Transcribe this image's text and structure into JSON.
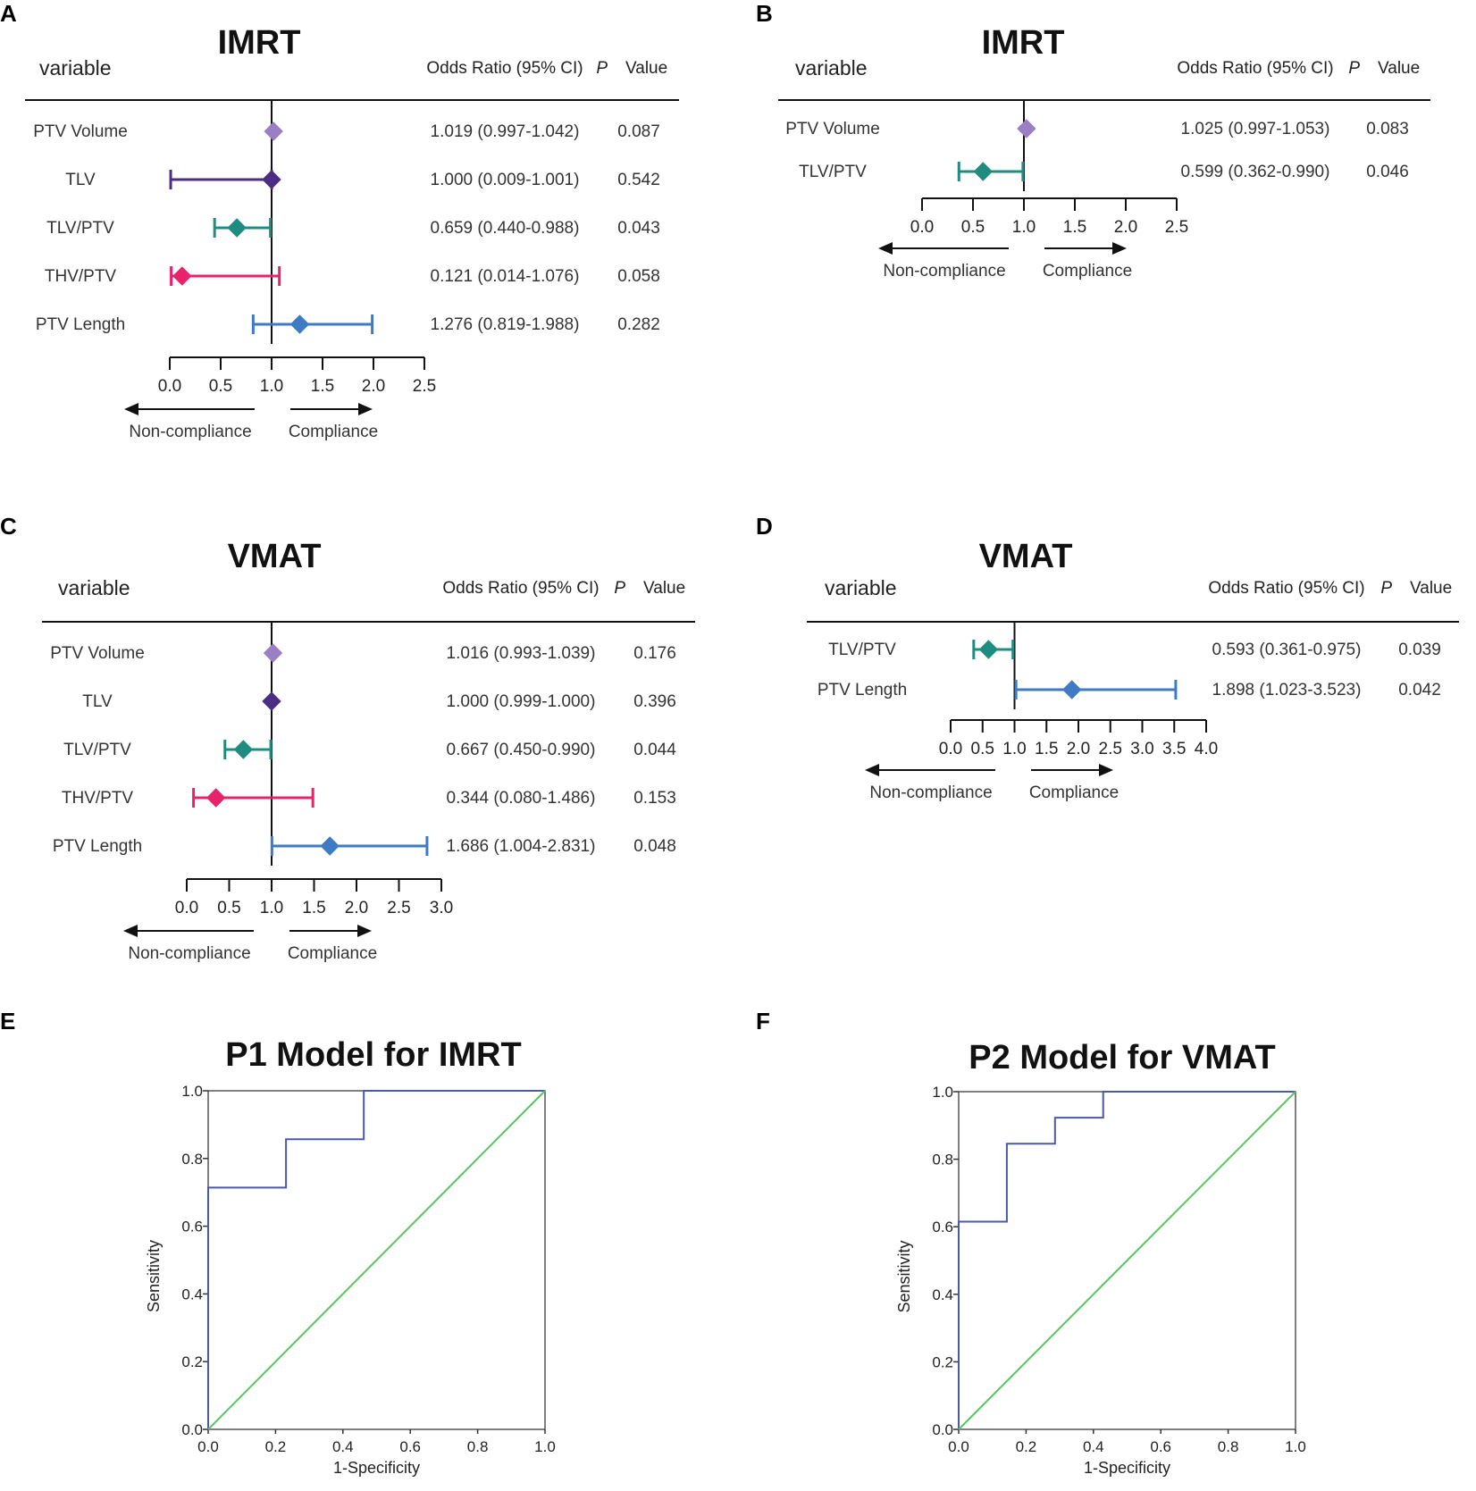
{
  "figure": {
    "forest_headers": {
      "variable": "variable",
      "or": "Odds Ratio (95% CI)",
      "p_italic": "P",
      "p_rest": "Value",
      "non_compliance": "Non-compliance",
      "compliance": "Compliance"
    },
    "colors": {
      "PTV Volume": "#9b7fc4",
      "TLV": "#4b2d84",
      "TLV/PTV": "#1f8c82",
      "THV/PTV": "#e8226b",
      "PTV Length": "#3f7bc4",
      "roc_curve": "#4a5aa8",
      "roc_diag": "#59c461"
    }
  },
  "chart_data": [
    {
      "id": "A",
      "type": "forest",
      "letter": "A",
      "title": "IMRT",
      "ticks": [
        "0.0",
        "0.5",
        "1.0",
        "1.5",
        "2.0",
        "2.5"
      ],
      "xlim": [
        0,
        2.5
      ],
      "rows": [
        {
          "label": "PTV Volume",
          "or": 1.019,
          "lo": 0.997,
          "hi": 1.042,
          "or_text": "1.019 (0.997-1.042)",
          "p": "0.087"
        },
        {
          "label": "TLV",
          "or": 1.0,
          "lo": 0.009,
          "hi": 1.001,
          "or_text": "1.000 (0.009-1.001)",
          "p": "0.542"
        },
        {
          "label": "TLV/PTV",
          "or": 0.659,
          "lo": 0.44,
          "hi": 0.988,
          "or_text": "0.659 (0.440-0.988)",
          "p": "0.043"
        },
        {
          "label": "THV/PTV",
          "or": 0.121,
          "lo": 0.014,
          "hi": 1.076,
          "or_text": "0.121 (0.014-1.076)",
          "p": "0.058"
        },
        {
          "label": "PTV Length",
          "or": 1.276,
          "lo": 0.819,
          "hi": 1.988,
          "or_text": "1.276 (0.819-1.988)",
          "p": "0.282"
        }
      ]
    },
    {
      "id": "B",
      "type": "forest",
      "letter": "B",
      "title": "IMRT",
      "ticks": [
        "0.0",
        "0.5",
        "1.0",
        "1.5",
        "2.0",
        "2.5"
      ],
      "xlim": [
        0,
        2.5
      ],
      "rows": [
        {
          "label": "PTV Volume",
          "or": 1.025,
          "lo": 0.997,
          "hi": 1.053,
          "or_text": "1.025 (0.997-1.053)",
          "p": "0.083"
        },
        {
          "label": "TLV/PTV",
          "or": 0.599,
          "lo": 0.362,
          "hi": 0.99,
          "or_text": "0.599 (0.362-0.990)",
          "p": "0.046"
        }
      ]
    },
    {
      "id": "C",
      "type": "forest",
      "letter": "C",
      "title": "VMAT",
      "ticks": [
        "0.0",
        "0.5",
        "1.0",
        "1.5",
        "2.0",
        "2.5",
        "3.0"
      ],
      "xlim": [
        0,
        3.0
      ],
      "rows": [
        {
          "label": "PTV Volume",
          "or": 1.016,
          "lo": 0.993,
          "hi": 1.039,
          "or_text": "1.016 (0.993-1.039)",
          "p": "0.176"
        },
        {
          "label": "TLV",
          "or": 1.0,
          "lo": 0.999,
          "hi": 1.0,
          "or_text": "1.000 (0.999-1.000)",
          "p": "0.396"
        },
        {
          "label": "TLV/PTV",
          "or": 0.667,
          "lo": 0.45,
          "hi": 0.99,
          "or_text": "0.667 (0.450-0.990)",
          "p": "0.044"
        },
        {
          "label": "THV/PTV",
          "or": 0.344,
          "lo": 0.08,
          "hi": 1.486,
          "or_text": "0.344 (0.080-1.486)",
          "p": "0.153"
        },
        {
          "label": "PTV Length",
          "or": 1.686,
          "lo": 1.004,
          "hi": 2.831,
          "or_text": "1.686 (1.004-2.831)",
          "p": "0.048"
        }
      ]
    },
    {
      "id": "D",
      "type": "forest",
      "letter": "D",
      "title": "VMAT",
      "ticks": [
        "0.0",
        "0.5",
        "1.0",
        "1.5",
        "2.0",
        "2.5",
        "3.0",
        "3.5",
        "4.0"
      ],
      "xlim": [
        0,
        4.0
      ],
      "rows": [
        {
          "label": "TLV/PTV",
          "or": 0.593,
          "lo": 0.361,
          "hi": 0.975,
          "or_text": "0.593 (0.361-0.975)",
          "p": "0.039"
        },
        {
          "label": "PTV Length",
          "or": 1.898,
          "lo": 1.023,
          "hi": 3.523,
          "or_text": "1.898 (1.023-3.523)",
          "p": "0.042"
        }
      ]
    },
    {
      "id": "E",
      "type": "line",
      "letter": "E",
      "title": "P1 Model for IMRT",
      "xlabel": "1-Specificity",
      "ylabel": "Sensitivity",
      "xlim": [
        0,
        1
      ],
      "ylim": [
        0,
        1
      ],
      "x_ticks": [
        "0.0",
        "0.2",
        "0.4",
        "0.6",
        "0.8",
        "1.0"
      ],
      "y_ticks": [
        "0.0",
        "0.2",
        "0.4",
        "0.6",
        "0.8",
        "1.0"
      ],
      "series": [
        {
          "name": "ROC",
          "points": [
            [
              0,
              0
            ],
            [
              0,
              0.714
            ],
            [
              0.231,
              0.714
            ],
            [
              0.231,
              0.857
            ],
            [
              0.462,
              0.857
            ],
            [
              0.462,
              1.0
            ],
            [
              1.0,
              1.0
            ]
          ]
        },
        {
          "name": "Reference",
          "points": [
            [
              0,
              0
            ],
            [
              1,
              1
            ]
          ]
        }
      ]
    },
    {
      "id": "F",
      "type": "line",
      "letter": "F",
      "title": "P2 Model for VMAT",
      "xlabel": "1-Specificity",
      "ylabel": "Sensitivity",
      "xlim": [
        0,
        1
      ],
      "ylim": [
        0,
        1
      ],
      "x_ticks": [
        "0.0",
        "0.2",
        "0.4",
        "0.6",
        "0.8",
        "1.0"
      ],
      "y_ticks": [
        "0.0",
        "0.2",
        "0.4",
        "0.6",
        "0.8",
        "1.0"
      ],
      "series": [
        {
          "name": "ROC",
          "points": [
            [
              0,
              0
            ],
            [
              0,
              0.615
            ],
            [
              0.143,
              0.615
            ],
            [
              0.143,
              0.846
            ],
            [
              0.286,
              0.846
            ],
            [
              0.286,
              0.923
            ],
            [
              0.429,
              0.923
            ],
            [
              0.429,
              1.0
            ],
            [
              1.0,
              1.0
            ]
          ]
        },
        {
          "name": "Reference",
          "points": [
            [
              0,
              0
            ],
            [
              1,
              1
            ]
          ]
        }
      ]
    }
  ]
}
